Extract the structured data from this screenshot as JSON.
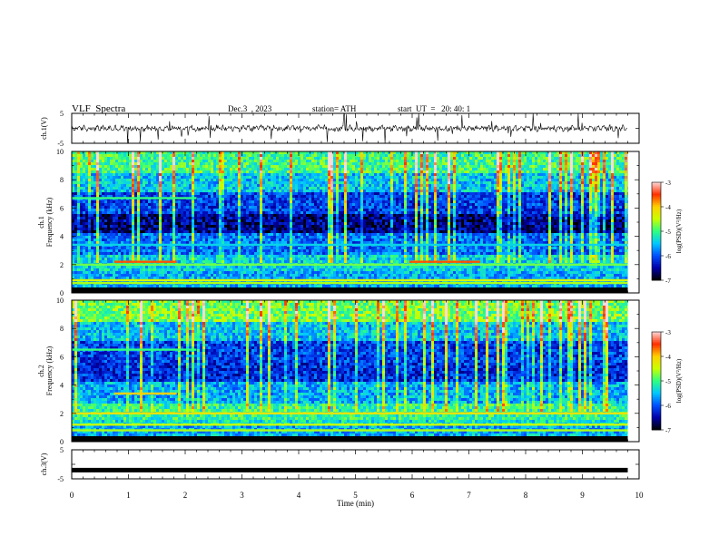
{
  "header": {
    "title": "VLF  Spectra",
    "date": "Dec.3  , 2023",
    "station": "station= ATH",
    "start": "start  UT  =   20: 40: 1"
  },
  "chart_data": [
    {
      "type": "line",
      "id": "ch1-waveform",
      "ylabel": "ch.1(V)",
      "ylim": [
        -5,
        5
      ],
      "xlim": [
        0,
        10
      ],
      "y_ticks": [
        "5",
        "-5"
      ],
      "description_of_signal": "noisy waveform around 0 V with frequent spikes",
      "x_end": 9.8
    },
    {
      "type": "heatmap",
      "id": "ch1-spectrogram",
      "ylabel": "ch.1\nFrequency (kHz)",
      "ylabel_top": "ch.1",
      "ylabel_bottom": "Frequency (kHz)",
      "ylim": [
        0,
        10
      ],
      "xlim": [
        0,
        10
      ],
      "y_ticks": [
        "0",
        "2",
        "4",
        "6",
        "8",
        "10"
      ],
      "x_end": 9.8,
      "colorbar": {
        "label": "log(PSD)(V²/Hz)",
        "range": [
          -7,
          -3
        ],
        "ticks": [
          "-3",
          "-4",
          "-5",
          "-6",
          "-7"
        ]
      },
      "lines_khz": [
        {
          "f": 2.2,
          "from": 0.75,
          "to": 1.85,
          "level": -3.6
        },
        {
          "f": 2.2,
          "from": 5.95,
          "to": 7.2,
          "level": -3.6
        },
        {
          "f": 2.0,
          "from": 0,
          "to": 9.8,
          "level": -4.8
        },
        {
          "f": 6.7,
          "from": 0,
          "to": 2.2,
          "level": -5.0
        },
        {
          "f": 0.9,
          "from": 0,
          "to": 9.8,
          "level": -4.4
        },
        {
          "f": 0.7,
          "from": 0,
          "to": 9.8,
          "level": -4.6
        },
        {
          "f": 3.4,
          "from": 0,
          "to": 9.8,
          "level": -5.4
        }
      ]
    },
    {
      "type": "heatmap",
      "id": "ch2-spectrogram",
      "ylabel": "ch.2\nFrequency (kHz)",
      "ylabel_top": "ch.2",
      "ylabel_bottom": "Frequency (kHz)",
      "ylim": [
        0,
        10
      ],
      "xlim": [
        0,
        10
      ],
      "y_ticks": [
        "0",
        "2",
        "4",
        "6",
        "8",
        "10"
      ],
      "x_end": 9.8,
      "colorbar": {
        "label": "log(PSD)(V²/Hz)",
        "range": [
          -7,
          -3
        ],
        "ticks": [
          "-3",
          "-4",
          "-5",
          "-6",
          "-7"
        ]
      },
      "lines_khz": [
        {
          "f": 2.0,
          "from": 0.75,
          "to": 1.85,
          "level": -3.6
        },
        {
          "f": 2.0,
          "from": 5.95,
          "to": 7.2,
          "level": -3.7
        },
        {
          "f": 2.0,
          "from": 0,
          "to": 9.8,
          "level": -4.2
        },
        {
          "f": 3.4,
          "from": 0.75,
          "to": 1.85,
          "level": -4.0
        },
        {
          "f": 6.5,
          "from": 0,
          "to": 2.2,
          "level": -5.0
        },
        {
          "f": 1.2,
          "from": 0,
          "to": 9.8,
          "level": -4.5
        },
        {
          "f": 0.8,
          "from": 0,
          "to": 9.8,
          "level": -4.6
        }
      ]
    },
    {
      "type": "line",
      "id": "ch3-waveform",
      "ylabel": "ch.3(V)",
      "ylim": [
        -5,
        5
      ],
      "xlim": [
        0,
        10
      ],
      "y_ticks": [
        "5",
        "-5"
      ],
      "constant_value": -2.0,
      "x_end": 9.8
    }
  ],
  "x_axis": {
    "label": "Time  (min)",
    "ticks": [
      "0",
      "1",
      "2",
      "3",
      "4",
      "5",
      "6",
      "7",
      "8",
      "9",
      "10"
    ]
  },
  "colors": {
    "colormap": [
      "#000000",
      "#0000a8",
      "#0050ff",
      "#00c8ff",
      "#30ff80",
      "#c8ff00",
      "#ffd000",
      "#ff3000",
      "#ffd8d8"
    ]
  }
}
